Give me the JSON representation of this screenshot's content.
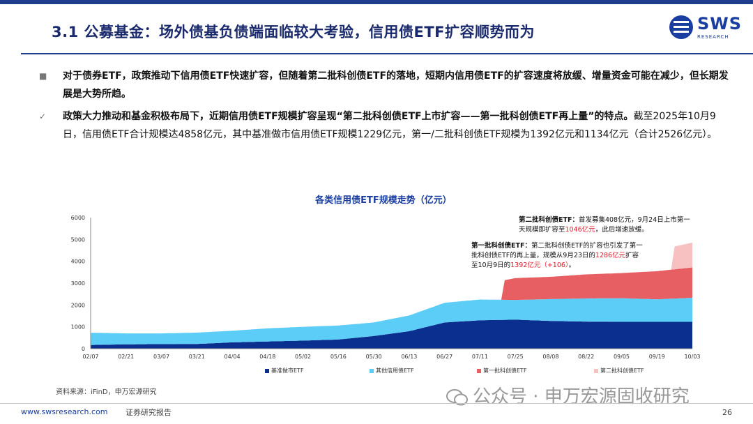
{
  "header": {
    "title": "3.1 公募基金：场外债基负债端面临较大考验，信用债ETF扩容顺势而为",
    "logo_name": "SWS",
    "logo_sub": "RESEARCH"
  },
  "bullets": [
    {
      "marker": "■",
      "text": "对于债券ETF，政策推动下信用债ETF快速扩容，但随着第二批科创债ETF的落地，短期内信用债ETF的扩容速度将放缓、增量资金可能在减少，但长期发展是大势所趋。"
    },
    {
      "marker": "✓",
      "bold_text": "政策大力推动和基金积极布局下，近期信用债ETF规模扩容呈现“第二批科创债ETF上市扩容——第一批科创债ETF再上量”的特点。",
      "text": "截至2025年10月9日，信用债ETF合计规模达4858亿元，其中基准做市信用债ETF规模1229亿元，第一/二批科创债ETF规模为1392亿元和1134亿元（合计2526亿元）。"
    }
  ],
  "annotations": {
    "second_batch": {
      "label": "第二批科创债ETF：",
      "text1": "首发募集408亿元，9月24日上市第一天规模即扩容至",
      "highlight": "1046亿元",
      "text2": "，此后增速放缓。"
    },
    "first_batch": {
      "label": "第一批科创债ETF：",
      "text1": "第二批科创债ETF的扩容也引发了第一批科创债ETF的再上量，规模从9月23日的",
      "highlight1": "1286亿元",
      "text2": "扩容至10月9日的",
      "highlight2": "1392亿元（+106）",
      "text3": "。"
    }
  },
  "chart_data": {
    "type": "area",
    "title": "各类信用债ETF规模走势（亿元）",
    "stacked": true,
    "ylim": [
      0,
      6000
    ],
    "y_ticks": [
      0,
      1000,
      2000,
      3000,
      4000,
      5000,
      6000
    ],
    "x_tick_labels": [
      "02/07",
      "02/21",
      "03/07",
      "03/21",
      "04/04",
      "04/18",
      "05/02",
      "05/16",
      "05/30",
      "06/13",
      "06/27",
      "07/11",
      "07/25",
      "08/08",
      "08/22",
      "09/05",
      "09/19",
      "10/03"
    ],
    "grid": false,
    "legend_position": "bottom",
    "series": [
      {
        "name": "基准做市ETF",
        "color": "#0b2f8f",
        "points": [
          [
            0,
            170
          ],
          [
            1,
            200
          ],
          [
            2,
            210
          ],
          [
            3,
            215
          ],
          [
            4,
            290
          ],
          [
            5,
            330
          ],
          [
            6,
            370
          ],
          [
            7,
            420
          ],
          [
            8,
            580
          ],
          [
            9,
            800
          ],
          [
            10,
            1200
          ],
          [
            11,
            1300
          ],
          [
            12,
            1330
          ],
          [
            13,
            1270
          ],
          [
            14,
            1240
          ],
          [
            15,
            1230
          ],
          [
            16,
            1230
          ],
          [
            17,
            1229
          ]
        ]
      },
      {
        "name": "其他信用债ETF",
        "color": "#5ccdf6",
        "points": [
          [
            0,
            560
          ],
          [
            1,
            500
          ],
          [
            2,
            490
          ],
          [
            3,
            520
          ],
          [
            4,
            530
          ],
          [
            5,
            600
          ],
          [
            6,
            630
          ],
          [
            7,
            640
          ],
          [
            8,
            620
          ],
          [
            9,
            720
          ],
          [
            10,
            900
          ],
          [
            11,
            950
          ],
          [
            12,
            900
          ],
          [
            13,
            1000
          ],
          [
            14,
            1060
          ],
          [
            15,
            1080
          ],
          [
            16,
            1030
          ],
          [
            17,
            1100
          ]
        ]
      },
      {
        "name": "第一批科创债ETF",
        "color": "#e85f63",
        "points": [
          [
            11,
            0
          ],
          [
            11.6,
            0
          ],
          [
            11.7,
            900
          ],
          [
            12,
            1000
          ],
          [
            13,
            1020
          ],
          [
            14,
            1100
          ],
          [
            15,
            1150
          ],
          [
            16,
            1286
          ],
          [
            17,
            1392
          ]
        ]
      },
      {
        "name": "第二批科创债ETF",
        "color": "#f7c1c1",
        "points": [
          [
            16.4,
            0
          ],
          [
            16.5,
            1046
          ],
          [
            17,
            1134
          ]
        ]
      }
    ]
  },
  "source": "资料来源：iFinD，申万宏源研究",
  "footer": {
    "url": "www.swsresearch.com",
    "note": "证券研究报告",
    "page": "26"
  },
  "watermark": "公众号 · 申万宏源固收研究"
}
